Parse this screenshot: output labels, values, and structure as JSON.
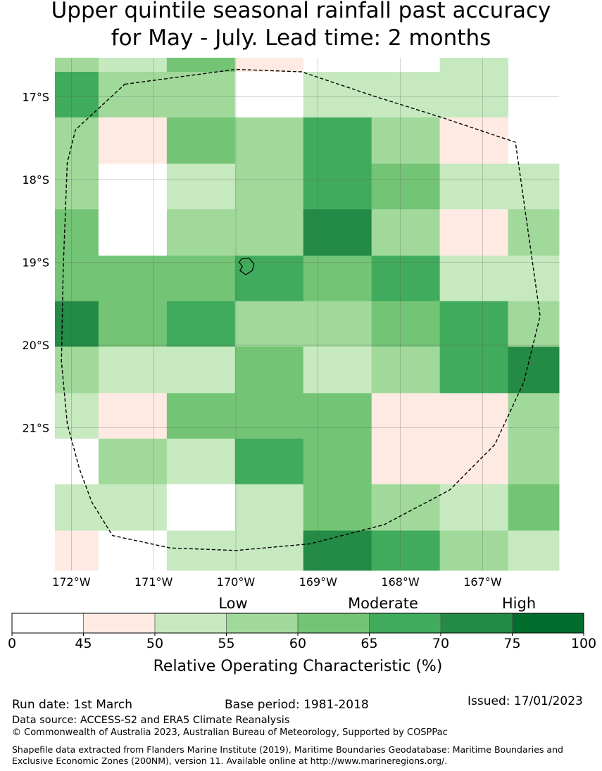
{
  "title": {
    "line1": "Upper quintile seasonal rainfall past accuracy",
    "line2": "for May - July. Lead time: 2 months"
  },
  "chart_data": {
    "type": "heatmap",
    "title": "Upper quintile seasonal rainfall past accuracy for May - July. Lead time: 2 months",
    "xlim": [
      -172.2,
      -166.07
    ],
    "ylim": [
      -22.72,
      -16.53
    ],
    "x_ticks": [
      -172,
      -171,
      -170,
      -169,
      -168,
      -167
    ],
    "x_tick_labels": [
      "172°W",
      "171°W",
      "170°W",
      "169°W",
      "168°W",
      "167°W"
    ],
    "y_ticks": [
      -17,
      -18,
      -19,
      -20,
      -21
    ],
    "y_tick_labels": [
      "17°S",
      "18°S",
      "19°S",
      "20°S",
      "21°S"
    ],
    "grid": true,
    "column_edges_lon": [
      -172.2,
      -171.67,
      -170.84,
      -170.01,
      -169.18,
      -168.35,
      -167.52,
      -166.69,
      -166.07
    ],
    "row_edges_lat": [
      -16.53,
      -16.7,
      -17.25,
      -17.81,
      -18.36,
      -18.92,
      -19.47,
      -20.02,
      -20.58,
      -21.13,
      -21.68,
      -22.24,
      -22.72
    ],
    "roc_class_index": [
      [
        3,
        2,
        4,
        1,
        0,
        0,
        2,
        -1
      ],
      [
        5,
        3,
        3,
        0,
        2,
        2,
        2,
        -1
      ],
      [
        3,
        1,
        4,
        3,
        5,
        3,
        1,
        -1
      ],
      [
        3,
        0,
        2,
        3,
        5,
        4,
        2,
        2
      ],
      [
        4,
        0,
        3,
        3,
        6,
        3,
        1,
        3
      ],
      [
        4,
        4,
        4,
        5,
        4,
        5,
        2,
        2
      ],
      [
        6,
        4,
        5,
        3,
        3,
        4,
        5,
        3
      ],
      [
        3,
        2,
        2,
        4,
        2,
        3,
        5,
        6
      ],
      [
        2,
        1,
        4,
        4,
        4,
        1,
        1,
        3
      ],
      [
        0,
        3,
        2,
        5,
        4,
        1,
        1,
        3
      ],
      [
        2,
        2,
        0,
        2,
        4,
        3,
        2,
        4
      ],
      [
        1,
        0,
        2,
        2,
        6,
        5,
        3,
        2
      ]
    ],
    "colorbar": {
      "bounds": [
        0,
        45,
        50,
        55,
        60,
        65,
        70,
        75,
        100
      ],
      "tick_labels": [
        "0",
        "45",
        "50",
        "55",
        "60",
        "65",
        "70",
        "75",
        "100"
      ],
      "colors": [
        "#ffffff",
        "#feeae2",
        "#c7e9c0",
        "#a1d99b",
        "#74c476",
        "#41ab5d",
        "#238b45",
        "#006d2c"
      ],
      "category_labels": [
        "Low",
        "Moderate",
        "High"
      ],
      "label": "Relative Operating Characteristic (%)"
    },
    "annotations": [
      "EEZ boundary (dashed)",
      "Niue island outline"
    ]
  },
  "footer": {
    "run_date": "Run date: 1st March",
    "base_period": "Base period: 1981-2018",
    "issued": "Issued: 17/01/2023",
    "data_source": "Data source: ACCESS-S2 and ERA5 Climate Reanalysis",
    "copyright": "© Commonwealth of Australia 2023, Australian Bureau of Meteorology, Supported by COSPPac",
    "shapefile": "Shapefile data extracted from Flanders Marine Institute (2019), Maritime Boundaries Geodatabase: Maritime Boundaries and Exclusive Economic Zones (200NM), version 11. Available online at http://www.marineregions.org/."
  }
}
